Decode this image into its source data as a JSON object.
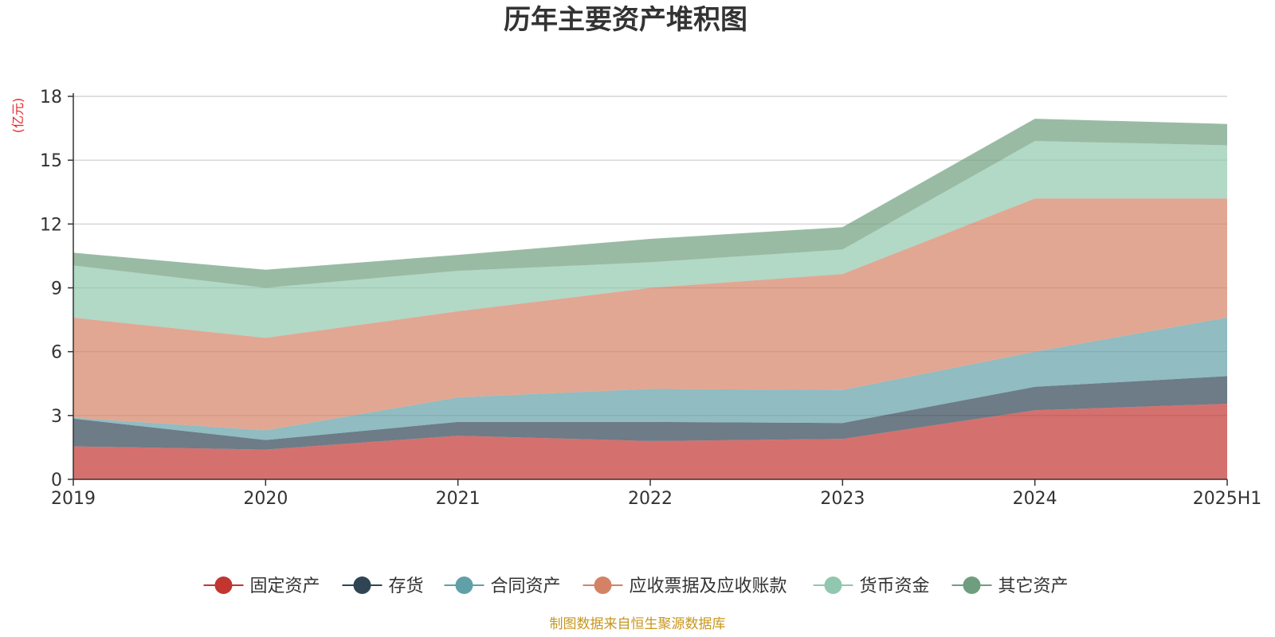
{
  "chart_data": {
    "type": "area",
    "stacked": true,
    "title": "历年主要资产堆积图",
    "unit": "(亿元)",
    "categories": [
      "2019",
      "2020",
      "2021",
      "2022",
      "2023",
      "2024",
      "2025H1"
    ],
    "ylim": [
      0,
      18
    ],
    "yticks": [
      0,
      3,
      6,
      9,
      12,
      15,
      18
    ],
    "grid": true,
    "legend_position": "bottom",
    "series": [
      {
        "name": "固定资产",
        "values": [
          1.55,
          1.4,
          2.05,
          1.8,
          1.9,
          3.25,
          3.55
        ],
        "color": "#c23531"
      },
      {
        "name": "存货",
        "values": [
          1.3,
          0.45,
          0.65,
          0.9,
          0.75,
          1.1,
          1.3
        ],
        "color": "#2f4554"
      },
      {
        "name": "合同资产",
        "values": [
          0.05,
          0.45,
          1.15,
          1.55,
          1.55,
          1.65,
          2.75
        ],
        "color": "#61a0a8"
      },
      {
        "name": "应收票据及应收账款",
        "values": [
          4.7,
          4.35,
          4.05,
          4.75,
          5.45,
          7.2,
          5.6
        ],
        "color": "#d48265"
      },
      {
        "name": "货币资金",
        "values": [
          2.45,
          2.35,
          1.9,
          1.2,
          1.15,
          2.7,
          2.5
        ],
        "color": "#91c7ae"
      },
      {
        "name": "其它资产",
        "values": [
          0.6,
          0.85,
          0.75,
          1.1,
          1.05,
          1.05,
          1.0
        ],
        "color": "#6e9e7e"
      }
    ],
    "source": "制图数据来自恒生聚源数据库"
  }
}
